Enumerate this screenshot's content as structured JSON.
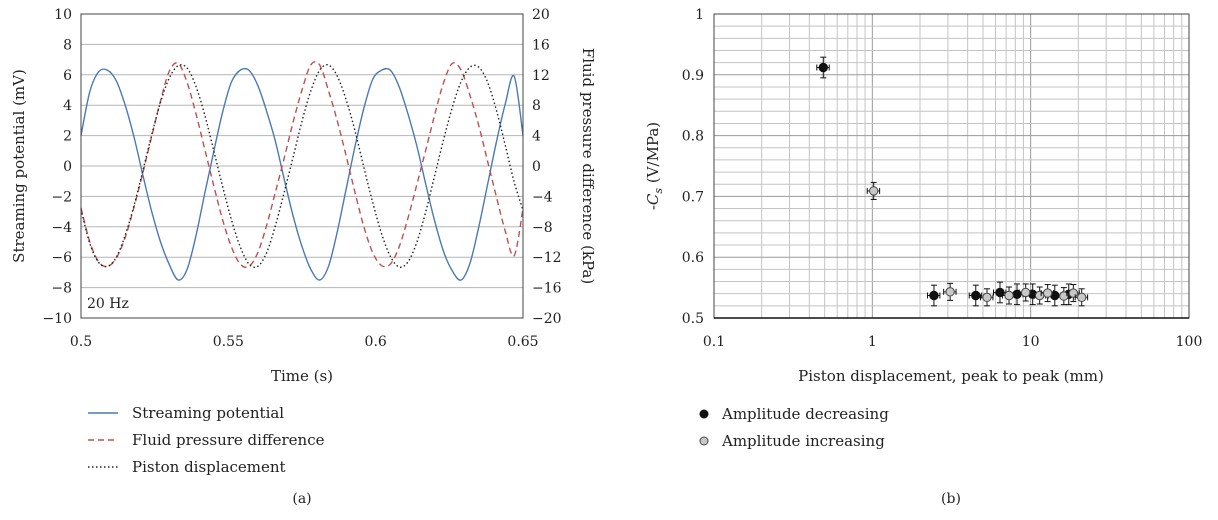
{
  "chart_data": [
    {
      "panel_label": "(a)",
      "type": "line",
      "xlabel": "Time (s)",
      "ylabel": "Streaming potential (mV)",
      "y2label": "Fluid pressure difference (kPa)",
      "annotation": "20 Hz",
      "xlim": [
        0.5,
        0.65
      ],
      "ylim": [
        -10,
        10
      ],
      "y2lim": [
        -20,
        20
      ],
      "xticks": [
        "0.5",
        "0.55",
        "0.6",
        "0.65"
      ],
      "yticks": [
        "−10",
        "−8",
        "−6",
        "−4",
        "−2",
        "0",
        "2",
        "4",
        "6",
        "8",
        "10"
      ],
      "y2ticks": [
        "−20",
        "−16",
        "−12",
        "−8",
        "−4",
        "0",
        "4",
        "8",
        "12",
        "16",
        "20"
      ],
      "grid": "horizontal",
      "legend_position": "bottom",
      "series": [
        {
          "name": "Streaming potential",
          "axis": "left",
          "style": "solid",
          "color": "#4a7ab5",
          "x": [
            0.5,
            0.503,
            0.506,
            0.509,
            0.512,
            0.515,
            0.518,
            0.521,
            0.524,
            0.527,
            0.53,
            0.533,
            0.536,
            0.539,
            0.542,
            0.545,
            0.548,
            0.551,
            0.554,
            0.557,
            0.56,
            0.563,
            0.566,
            0.569,
            0.572,
            0.575,
            0.578,
            0.581,
            0.584,
            0.587,
            0.59,
            0.593,
            0.596,
            0.599,
            0.602,
            0.605,
            0.608,
            0.611,
            0.614,
            0.617,
            0.62,
            0.623,
            0.626,
            0.629,
            0.632,
            0.635,
            0.638,
            0.641,
            0.644,
            0.647,
            0.65
          ],
          "values": [
            2.0,
            4.9,
            6.2,
            6.3,
            5.6,
            4.0,
            1.9,
            -0.6,
            -3.0,
            -5.0,
            -6.5,
            -7.5,
            -6.8,
            -4.6,
            -1.8,
            0.9,
            3.5,
            5.5,
            6.3,
            6.3,
            5.3,
            3.6,
            1.6,
            -0.9,
            -3.3,
            -5.3,
            -6.8,
            -7.5,
            -6.6,
            -4.3,
            -1.5,
            1.3,
            3.8,
            5.7,
            6.3,
            6.3,
            5.2,
            3.4,
            1.3,
            -1.2,
            -3.6,
            -5.6,
            -6.9,
            -7.5,
            -6.4,
            -4.0,
            -1.2,
            1.6,
            4.1,
            5.9,
            2.0
          ]
        },
        {
          "name": "Fluid pressure difference",
          "axis": "right",
          "style": "dashed",
          "color": "#c0504d",
          "x": [
            0.5,
            0.503,
            0.506,
            0.509,
            0.512,
            0.515,
            0.518,
            0.521,
            0.524,
            0.527,
            0.53,
            0.533,
            0.536,
            0.539,
            0.542,
            0.545,
            0.548,
            0.551,
            0.554,
            0.557,
            0.56,
            0.563,
            0.566,
            0.569,
            0.572,
            0.575,
            0.578,
            0.581,
            0.584,
            0.587,
            0.59,
            0.593,
            0.596,
            0.599,
            0.602,
            0.605,
            0.608,
            0.611,
            0.614,
            0.617,
            0.62,
            0.623,
            0.626,
            0.629,
            0.632,
            0.635,
            0.638,
            0.641,
            0.644,
            0.647,
            0.65
          ],
          "values": [
            -5.5,
            -10.0,
            -12.6,
            -13.2,
            -12.1,
            -9.4,
            -5.4,
            -0.9,
            3.9,
            8.6,
            12.5,
            13.5,
            11.0,
            6.9,
            2.2,
            -2.5,
            -7.0,
            -10.6,
            -12.9,
            -13.2,
            -11.4,
            -7.8,
            -3.4,
            1.1,
            5.8,
            10.0,
            13.3,
            13.3,
            9.9,
            5.9,
            1.3,
            -3.5,
            -8.0,
            -11.4,
            -13.1,
            -12.9,
            -10.6,
            -6.8,
            -2.4,
            2.1,
            6.7,
            10.9,
            13.5,
            12.6,
            9.3,
            5.3,
            0.6,
            -4.1,
            -8.6,
            -11.8,
            -5.6
          ]
        },
        {
          "name": "Piston displacement",
          "axis": "right",
          "style": "dotted",
          "color": "#222222",
          "x": [
            0.5,
            0.503,
            0.506,
            0.509,
            0.512,
            0.515,
            0.518,
            0.521,
            0.524,
            0.527,
            0.53,
            0.533,
            0.536,
            0.539,
            0.542,
            0.545,
            0.548,
            0.551,
            0.554,
            0.557,
            0.56,
            0.563,
            0.566,
            0.569,
            0.572,
            0.575,
            0.578,
            0.581,
            0.584,
            0.587,
            0.59,
            0.593,
            0.596,
            0.599,
            0.602,
            0.605,
            0.608,
            0.611,
            0.614,
            0.617,
            0.62,
            0.623,
            0.626,
            0.629,
            0.632,
            0.635,
            0.638,
            0.641,
            0.644,
            0.647,
            0.65
          ],
          "values": [
            -5.7,
            -10.2,
            -12.7,
            -13.2,
            -12.0,
            -9.1,
            -5.2,
            -0.6,
            4.1,
            8.4,
            11.6,
            13.2,
            12.9,
            10.5,
            6.7,
            2.1,
            -2.6,
            -7.0,
            -10.6,
            -12.9,
            -13.2,
            -11.4,
            -7.8,
            -3.4,
            1.2,
            5.9,
            9.9,
            12.6,
            13.3,
            11.8,
            8.7,
            4.6,
            -0.2,
            -4.8,
            -8.9,
            -11.9,
            -13.3,
            -12.6,
            -10.0,
            -6.0,
            -1.3,
            3.4,
            7.7,
            11.1,
            13.0,
            13.0,
            11.0,
            7.3,
            2.7,
            -2.1,
            -5.8
          ]
        }
      ]
    },
    {
      "panel_label": "(b)",
      "type": "scatter",
      "xlabel": "Piston displacement, peak to peak (mm)",
      "ylabel_prefix": "-",
      "ylabel_symbol": "C",
      "ylabel_sub": "s",
      "ylabel_suffix": " (V/MPa)",
      "xscale": "log",
      "xlim": [
        0.1,
        100
      ],
      "ylim": [
        0.5,
        1
      ],
      "xticks": [
        "0.1",
        "1",
        "10",
        "100"
      ],
      "yticks": [
        "0.5",
        "0.6",
        "0.7",
        "0.8",
        "0.9",
        "1"
      ],
      "grid": "log-minor",
      "legend_position": "bottom-left",
      "series": [
        {
          "name": "Amplitude decreasing",
          "marker": "filled-circle",
          "color": "#111111",
          "x": [
            0.49,
            2.45,
            4.5,
            6.4,
            8.2,
            10.3,
            14.2,
            17.4
          ],
          "y": [
            0.912,
            0.537,
            0.537,
            0.542,
            0.539,
            0.539,
            0.537,
            0.539
          ],
          "yerr": 0.017,
          "xerr_frac": 0.09
        },
        {
          "name": "Amplitude increasing",
          "marker": "open-circle",
          "color": "#c8c8c8",
          "x": [
            1.02,
            3.1,
            5.3,
            7.3,
            9.3,
            11.4,
            12.8,
            16.2,
            18.6,
            21.0
          ],
          "y": [
            0.709,
            0.543,
            0.534,
            0.537,
            0.542,
            0.537,
            0.541,
            0.536,
            0.541,
            0.534
          ],
          "yerr": 0.014,
          "xerr_frac": 0.09
        }
      ]
    }
  ]
}
